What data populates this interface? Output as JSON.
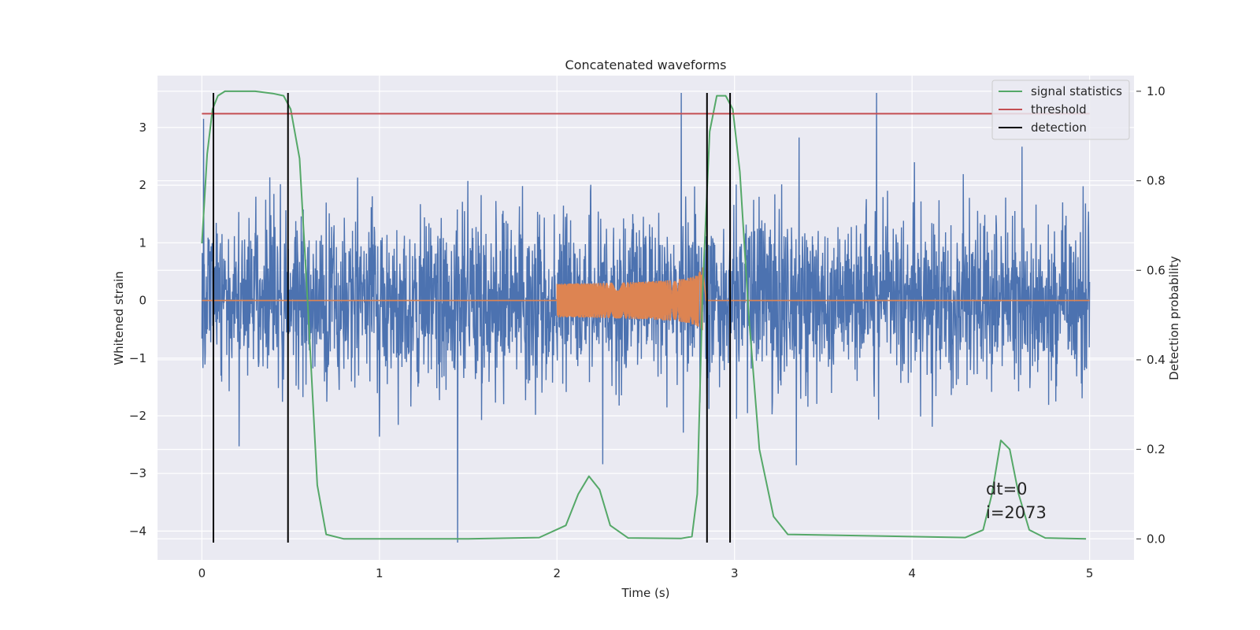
{
  "chart_data": {
    "type": "line",
    "title": "Concatenated waveforms",
    "xlabel": "Time (s)",
    "ylabel": "Whitened strain",
    "y2label": "Detection probability",
    "xlim": [
      -0.25,
      5.25
    ],
    "ylim": [
      -4.5,
      3.9
    ],
    "y2lim": [
      -0.047,
      1.035
    ],
    "x_ticks": [
      0,
      1,
      2,
      3,
      4,
      5
    ],
    "y_ticks": [
      -4,
      -3,
      -2,
      -1,
      0,
      1,
      2,
      3
    ],
    "y2_ticks": [
      0.0,
      0.2,
      0.4,
      0.6,
      0.8,
      1.0
    ],
    "x_tick_labels": [
      "0",
      "1",
      "2",
      "3",
      "4",
      "5"
    ],
    "y_tick_labels": [
      "−4",
      "−3",
      "−2",
      "−1",
      "0",
      "1",
      "2",
      "3"
    ],
    "y2_tick_labels": [
      "0.0",
      "0.2",
      "0.4",
      "0.6",
      "0.8",
      "1.0"
    ],
    "grid": true,
    "legend_position": "top-right",
    "annotation": [
      "dt=0",
      "i=2073"
    ],
    "series": [
      {
        "name": "",
        "role": "whitened strain noise",
        "color": "#4c72b0",
        "x_range": [
          0,
          5
        ],
        "amplitude_std": 0.75,
        "extremes": [
          {
            "x": 0.01,
            "y": 3.15
          },
          {
            "x": 1.44,
            "y": -4.2
          },
          {
            "x": 2.7,
            "y": 3.6
          },
          {
            "x": 3.8,
            "y": 3.6
          }
        ]
      },
      {
        "name": "",
        "role": "injected waveform",
        "color": "#dd8452",
        "x_range": [
          0,
          5
        ],
        "chirp_start": 2.0,
        "chirp_end": 2.82,
        "start_amplitude": 0.15,
        "peak_amplitude": 0.6
      },
      {
        "name": "signal statistics",
        "axis": "right",
        "color": "#55a868",
        "x": [
          0,
          0.03,
          0.06,
          0.09,
          0.13,
          0.2,
          0.3,
          0.4,
          0.46,
          0.5,
          0.55,
          0.6,
          0.65,
          0.7,
          0.8,
          1.5,
          1.9,
          2.05,
          2.12,
          2.18,
          2.24,
          2.3,
          2.4,
          2.7,
          2.76,
          2.79,
          2.82,
          2.86,
          2.9,
          2.95,
          2.99,
          3.03,
          3.08,
          3.14,
          3.22,
          3.3,
          4.3,
          4.4,
          4.45,
          4.5,
          4.55,
          4.6,
          4.66,
          4.75,
          4.98
        ],
        "y": [
          0.66,
          0.86,
          0.96,
          0.99,
          1.0,
          1.0,
          1.0,
          0.995,
          0.99,
          0.96,
          0.85,
          0.5,
          0.12,
          0.01,
          0.0,
          0.0,
          0.003,
          0.03,
          0.1,
          0.14,
          0.11,
          0.03,
          0.002,
          0.001,
          0.005,
          0.1,
          0.55,
          0.91,
          0.99,
          0.99,
          0.96,
          0.82,
          0.5,
          0.2,
          0.05,
          0.01,
          0.003,
          0.02,
          0.1,
          0.22,
          0.2,
          0.1,
          0.02,
          0.002,
          0.0
        ]
      },
      {
        "name": "threshold",
        "axis": "right",
        "color": "#c44e52",
        "x": [
          0,
          5
        ],
        "y": [
          0.95,
          0.95
        ]
      },
      {
        "name": "detection",
        "color": "#000000",
        "vlines_x": [
          0.065,
          0.485,
          2.845,
          2.975
        ],
        "vline_range": [
          -4.2,
          3.6
        ]
      }
    ]
  }
}
